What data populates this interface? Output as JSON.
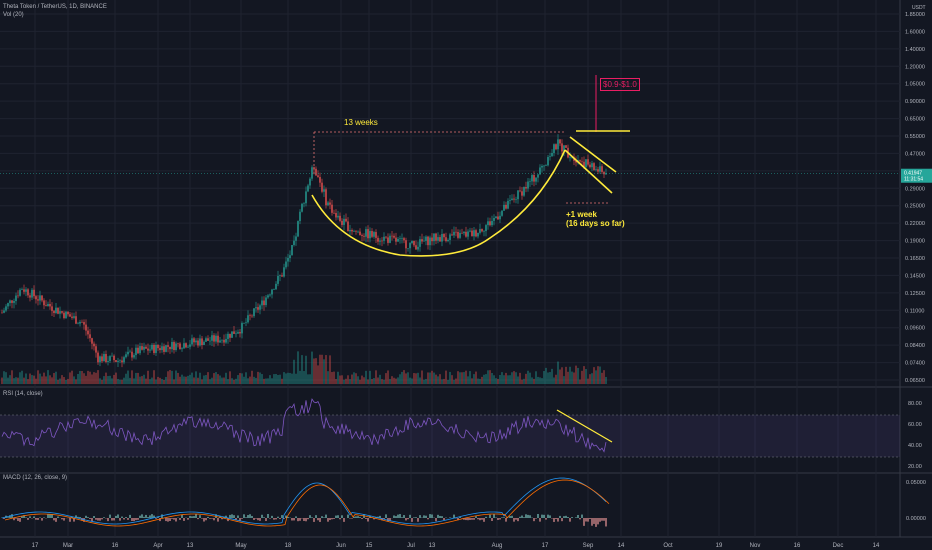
{
  "header": {
    "symbol_line": "Theta Token / TetherUS, 1D, BINANCE",
    "volume_line": "Vol (20)"
  },
  "price_axis": {
    "unit": "USDT",
    "ticks": [
      "1.85000",
      "1.60000",
      "1.40000",
      "1.20000",
      "1.05000",
      "0.90000",
      "0.65000",
      "0.55000",
      "0.47000",
      "0.35000",
      "0.29000",
      "0.25000",
      "0.22000",
      "0.19000",
      "0.16500",
      "0.14500",
      "0.12500",
      "0.11000",
      "0.09600",
      "0.08400",
      "0.07400",
      "0.06500"
    ],
    "current_price": "0.41947",
    "countdown": "11:31:54"
  },
  "rsi": {
    "label": "RSI (14, close)",
    "ticks": [
      "80.00",
      "60.00",
      "40.00",
      "20.00"
    ]
  },
  "macd": {
    "label": "MACD (12, 26, close, 9)",
    "ticks": [
      "0.05000",
      "0.00000"
    ]
  },
  "time_axis": {
    "labels": [
      "17",
      "Mar",
      "16",
      "Apr",
      "13",
      "May",
      "18",
      "Jun",
      "15",
      "Jul",
      "13",
      "Aug",
      "17",
      "Sep",
      "14",
      "Oct",
      "19",
      "Nov",
      "16",
      "Dec",
      "14"
    ]
  },
  "annotations": {
    "weeks_13": "13 weeks",
    "target": "$0.9-$1.0",
    "plus_week_line1": "+1 week",
    "plus_week_line2": "(16 days so far)"
  },
  "colors": {
    "up": "#26a69a",
    "down": "#ef5350",
    "annotation": "#ffeb3b",
    "target": "#e91e63",
    "background": "#131722",
    "rsi_line": "#7e57c2",
    "macd_line": "#2196f3",
    "signal_line": "#ff6d00"
  },
  "chart_data": {
    "type": "candlestick",
    "description_series": "Theta Token / TetherUS daily closes (approximate, key points)",
    "x": [
      "2020-02-17",
      "2020-03-01",
      "2020-03-13",
      "2020-04-01",
      "2020-05-01",
      "2020-05-15",
      "2020-05-26",
      "2020-06-05",
      "2020-06-20",
      "2020-07-01",
      "2020-07-15",
      "2020-08-01",
      "2020-08-15",
      "2020-08-24",
      "2020-09-08"
    ],
    "y": [
      0.12,
      0.12,
      0.075,
      0.085,
      0.09,
      0.16,
      0.42,
      0.27,
      0.23,
      0.22,
      0.24,
      0.28,
      0.4,
      0.55,
      0.42
    ],
    "y_scale": "log",
    "ylim": [
      0.062,
      1.9
    ]
  }
}
